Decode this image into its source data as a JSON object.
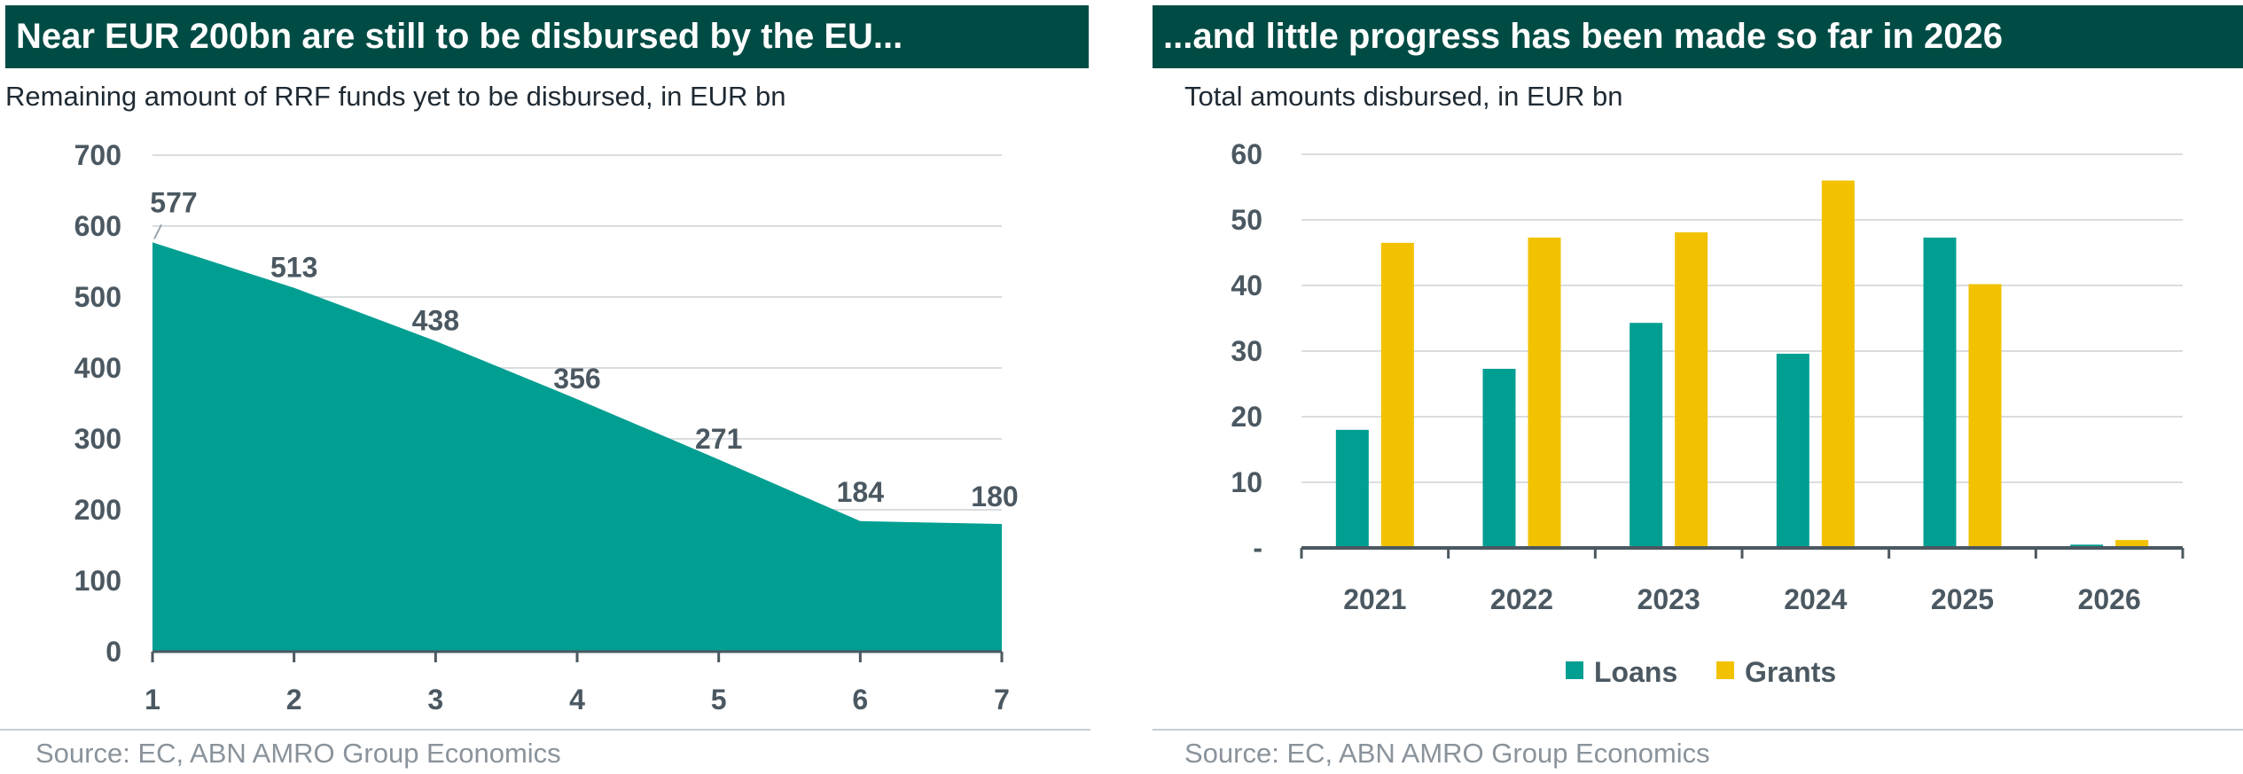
{
  "left": {
    "title": "Near EUR 200bn are still to be disbursed by the EU...",
    "subtitle": "Remaining amount of RRF funds yet to be disbursed, in EUR bn",
    "source": "Source: EC, ABN AMRO Group Economics"
  },
  "right": {
    "title": "...and little progress has been made so far in 2026",
    "subtitle": "Total amounts disbursed, in EUR bn",
    "source": "Source: EC, ABN AMRO Group Economics"
  },
  "colors": {
    "teal": "#009f92",
    "yellow": "#f2c200",
    "banner": "#004c45",
    "grid": "#dadde0",
    "axis": "#4b5861"
  },
  "chart_data": [
    {
      "type": "area",
      "title": "Near EUR 200bn are still to be disbursed by the EU...",
      "subtitle": "Remaining amount of RRF funds yet to be disbursed, in EUR bn",
      "x": [
        1,
        2,
        3,
        4,
        5,
        6,
        7
      ],
      "x_tick_labels": [
        "1",
        "2",
        "3",
        "4",
        "5",
        "6",
        "7"
      ],
      "values": [
        577,
        513,
        438,
        356,
        271,
        184,
        180
      ],
      "data_labels": [
        "577",
        "513",
        "438",
        "356",
        "271",
        "184",
        "180"
      ],
      "ylim": [
        0,
        700
      ],
      "y_ticks": [
        0,
        100,
        200,
        300,
        400,
        500,
        600,
        700
      ],
      "y_tick_labels": [
        "0",
        "100",
        "200",
        "300",
        "400",
        "500",
        "600",
        "700"
      ],
      "grid": true,
      "color": "#009f92"
    },
    {
      "type": "bar",
      "title": "...and little progress has been made so far in 2026",
      "subtitle": "Total amounts disbursed, in EUR bn",
      "categories": [
        "2021",
        "2022",
        "2023",
        "2024",
        "2025",
        "2026"
      ],
      "series": [
        {
          "name": "Loans",
          "color": "#009f92",
          "values": [
            18,
            27.3,
            34.3,
            29.6,
            47.3,
            0.5
          ]
        },
        {
          "name": "Grants",
          "color": "#f2c200",
          "values": [
            46.5,
            47.3,
            48.1,
            56,
            40.2,
            1.2
          ]
        }
      ],
      "ylim": [
        0,
        60
      ],
      "y_ticks": [
        0,
        10,
        20,
        30,
        40,
        50,
        60
      ],
      "y_tick_labels": [
        "-",
        "10",
        "20",
        "30",
        "40",
        "50",
        "60"
      ],
      "grid": true,
      "legend": "bottom-center"
    }
  ]
}
